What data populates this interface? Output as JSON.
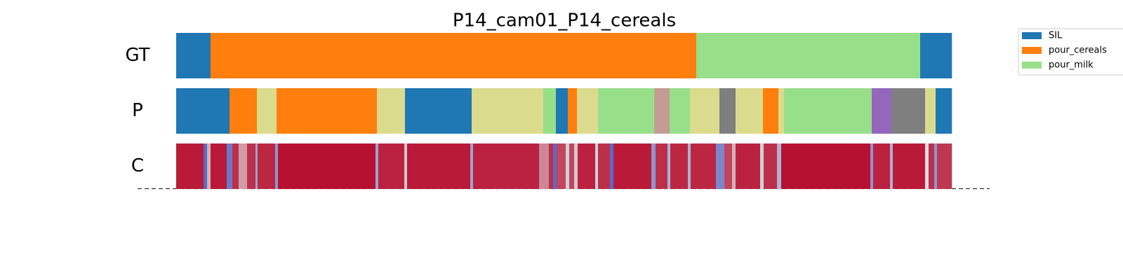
{
  "chart_data": {
    "type": "segmentation",
    "title": "P14_cam01_P14_cereals",
    "rows": [
      {
        "label": "GT",
        "segments": [
          {
            "length": 49,
            "color": "#1f77b4"
          },
          {
            "length": 692,
            "color": "#ff7f0e"
          },
          {
            "length": 319,
            "color": "#98df8a"
          },
          {
            "length": 45,
            "color": "#1f77b4"
          }
        ]
      },
      {
        "label": "P",
        "segments": [
          {
            "length": 76,
            "color": "#1f77b4"
          },
          {
            "length": 39,
            "color": "#ff7f0e"
          },
          {
            "length": 28,
            "color": "#dbdb8d"
          },
          {
            "length": 143,
            "color": "#ff7f0e"
          },
          {
            "length": 40,
            "color": "#dbdb8d"
          },
          {
            "length": 95,
            "color": "#1f77b4"
          },
          {
            "length": 102,
            "color": "#dbdb8d"
          },
          {
            "length": 18,
            "color": "#98df8a"
          },
          {
            "length": 17,
            "color": "#1f77b4"
          },
          {
            "length": 13,
            "color": "#ff7f0e"
          },
          {
            "length": 30,
            "color": "#dbdb8d"
          },
          {
            "length": 21,
            "color": "#98df8a"
          },
          {
            "length": 59,
            "color": "#98df8a"
          },
          {
            "length": 22,
            "color": "#c49c94"
          },
          {
            "length": 29,
            "color": "#98df8a"
          },
          {
            "length": 42,
            "color": "#dbdb8d"
          },
          {
            "length": 23,
            "color": "#7f7f7f"
          },
          {
            "length": 39,
            "color": "#dbdb8d"
          },
          {
            "length": 22,
            "color": "#ff7f0e"
          },
          {
            "length": 8,
            "color": "#dbdb8d"
          },
          {
            "length": 125,
            "color": "#98df8a"
          },
          {
            "length": 28,
            "color": "#9467bd"
          },
          {
            "length": 48,
            "color": "#7f7f7f"
          },
          {
            "length": 15,
            "color": "#dbdb8d"
          },
          {
            "length": 23,
            "color": "#1f77b4"
          }
        ]
      },
      {
        "label": "C",
        "confidence": [
          {
            "length": 39,
            "value": 0.95
          },
          {
            "length": 5,
            "value": 0.1
          },
          {
            "length": 5,
            "value": 0.6
          },
          {
            "length": 23,
            "value": 0.95
          },
          {
            "length": 8,
            "value": 0.15
          },
          {
            "length": 9,
            "value": 0.9
          },
          {
            "length": 12,
            "value": 0.65
          },
          {
            "length": 12,
            "value": 0.9
          },
          {
            "length": 3,
            "value": 0.3
          },
          {
            "length": 25,
            "value": 0.92
          },
          {
            "length": 4,
            "value": 0.25
          },
          {
            "length": 139,
            "value": 0.97
          },
          {
            "length": 4,
            "value": 0.3
          },
          {
            "length": 37,
            "value": 0.93
          },
          {
            "length": 4,
            "value": 0.55
          },
          {
            "length": 90,
            "value": 0.95
          },
          {
            "length": 4,
            "value": 0.3
          },
          {
            "length": 94,
            "value": 0.93
          },
          {
            "length": 14,
            "value": 0.7
          },
          {
            "length": 6,
            "value": 0.9
          },
          {
            "length": 5,
            "value": 0.1
          },
          {
            "length": 13,
            "value": 0.85
          },
          {
            "length": 5,
            "value": 0.45
          },
          {
            "length": 7,
            "value": 0.85
          },
          {
            "length": 5,
            "value": 0.55
          },
          {
            "length": 25,
            "value": 0.93
          },
          {
            "length": 4,
            "value": 0.45
          },
          {
            "length": 17,
            "value": 0.9
          },
          {
            "length": 5,
            "value": 0.1
          },
          {
            "length": 54,
            "value": 0.95
          },
          {
            "length": 6,
            "value": 0.25
          },
          {
            "length": 17,
            "value": 0.9
          },
          {
            "length": 4,
            "value": 0.35
          },
          {
            "length": 25,
            "value": 0.92
          },
          {
            "length": 4,
            "value": 0.35
          },
          {
            "length": 36,
            "value": 0.92
          },
          {
            "length": 12,
            "value": 0.2
          },
          {
            "length": 11,
            "value": 0.85
          },
          {
            "length": 5,
            "value": 0.6
          },
          {
            "length": 35,
            "value": 0.93
          },
          {
            "length": 5,
            "value": 0.45
          },
          {
            "length": 19,
            "value": 0.9
          },
          {
            "length": 6,
            "value": 0.35
          },
          {
            "length": 127,
            "value": 0.97
          },
          {
            "length": 4,
            "value": 0.25
          },
          {
            "length": 24,
            "value": 0.93
          },
          {
            "length": 4,
            "value": 0.35
          },
          {
            "length": 46,
            "value": 0.95
          },
          {
            "length": 5,
            "value": 0.5
          },
          {
            "length": 8,
            "value": 0.9
          },
          {
            "length": 4,
            "value": 0.25
          },
          {
            "length": 21,
            "value": 0.88
          }
        ]
      }
    ],
    "legend": [
      {
        "name": "SIL",
        "color": "#1f77b4"
      },
      {
        "name": "pour_cereals",
        "color": "#ff7f0e"
      },
      {
        "name": "pour_milk",
        "color": "#98df8a"
      }
    ]
  }
}
